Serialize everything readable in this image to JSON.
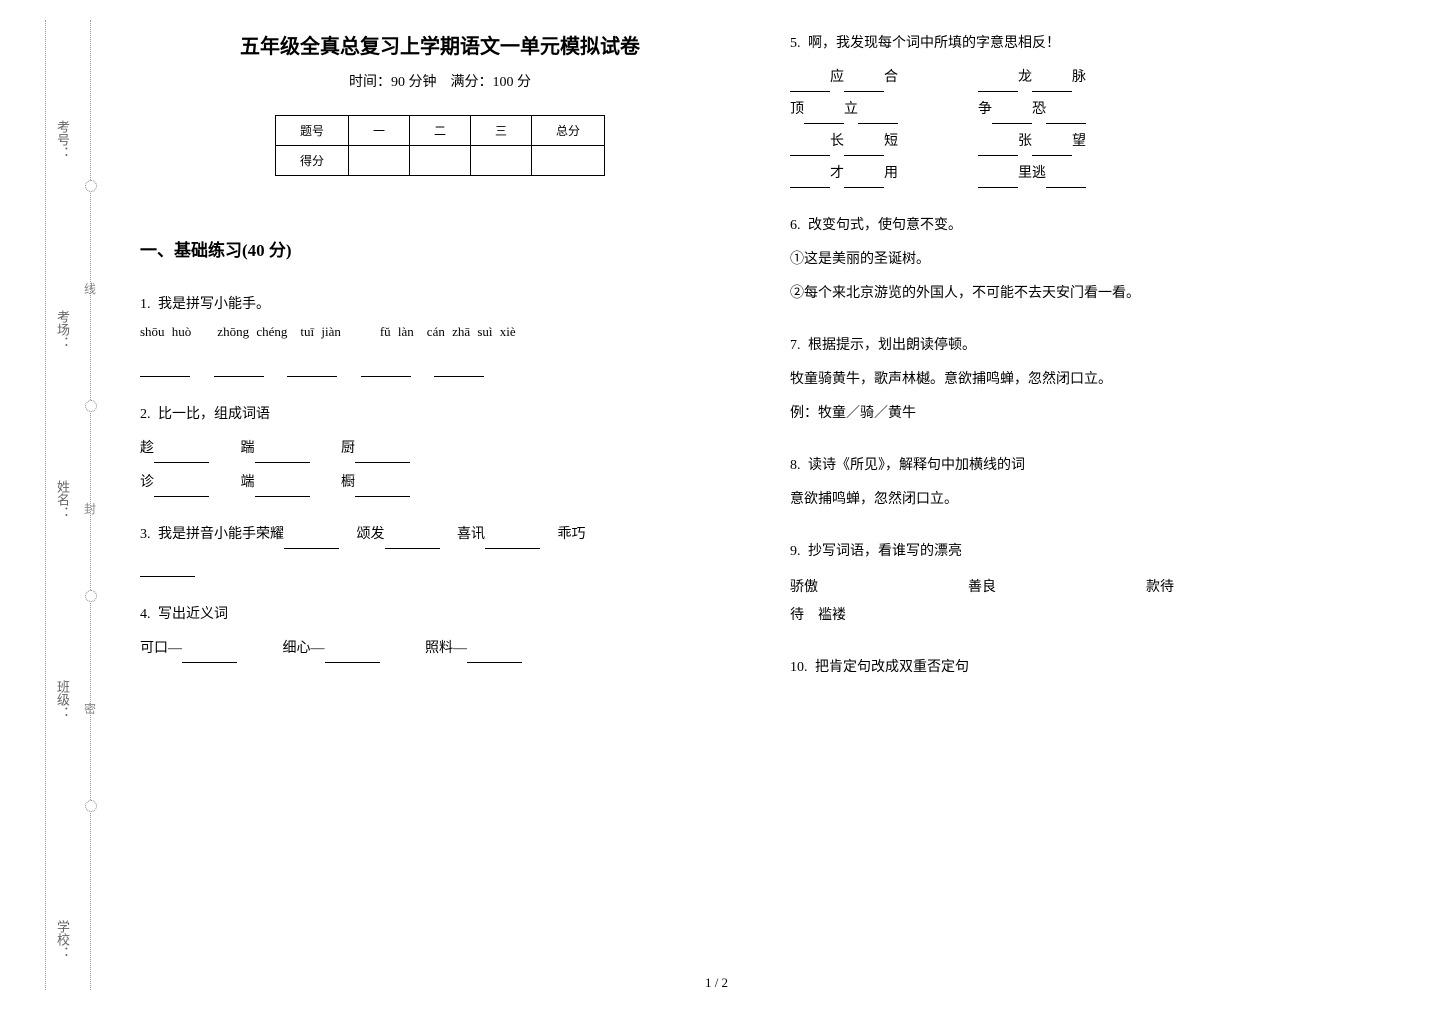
{
  "binding": {
    "labels": [
      "考号：",
      "考场：",
      "姓名：",
      "班级：",
      "学校："
    ],
    "seal_chars": [
      "线",
      "封",
      "密"
    ]
  },
  "header": {
    "title": "五年级全真总复习上学期语文一单元模拟试卷",
    "subtitle": "时间：90 分钟　满分：100 分"
  },
  "score_table": {
    "row1": [
      "题号",
      "一",
      "二",
      "三",
      "总分"
    ],
    "row2_label": "得分"
  },
  "section1": {
    "heading": "一、基础练习(40 分)"
  },
  "q1": {
    "label": "1.",
    "text": "我是拼写小能手。",
    "pinyin": "shōu huò　　zhōng chéng　tuī jiàn　　　fǔ làn　cán zhā suì xiè"
  },
  "q2": {
    "label": "2.",
    "text": "比一比，组成词语",
    "row1": [
      "趁",
      "踹",
      "厨"
    ],
    "row2": [
      "诊",
      "端",
      "橱"
    ]
  },
  "q3": {
    "label": "3.",
    "text": "我是拼音小能手荣耀",
    "items": [
      "颂发",
      "喜讯",
      "乖巧"
    ]
  },
  "q4": {
    "label": "4.",
    "text": "写出近义词",
    "items": [
      "可口—",
      "细心—",
      "照料—"
    ]
  },
  "q5": {
    "label": "5.",
    "text": "啊，我发现每个词中所填的字意思相反！",
    "left": [
      {
        "a": "应",
        "b": "合"
      },
      {
        "a": "顶",
        "b": "立"
      },
      {
        "a": "长",
        "b": "短"
      },
      {
        "a": "才",
        "b": "用"
      }
    ],
    "right": [
      {
        "a": "龙",
        "b": "脉"
      },
      {
        "a": "争",
        "b": "恐"
      },
      {
        "a": "张",
        "b": "望"
      },
      {
        "a": "里逃",
        "b": ""
      }
    ]
  },
  "q6": {
    "label": "6.",
    "text": "改变句式，使句意不变。",
    "line1": "①这是美丽的圣诞树。",
    "line2": "②每个来北京游览的外国人，不可能不去天安门看一看。"
  },
  "q7": {
    "label": "7.",
    "text": "根据提示，划出朗读停顿。",
    "content": "牧童骑黄牛，歌声林樾。意欲捕鸣蝉，忽然闭口立。",
    "example": "例：牧童／骑／黄牛"
  },
  "q8": {
    "label": "8.",
    "text": "读诗《所见》，解释句中加横线的词",
    "content": "意欲捕鸣蝉，忽然闭口立。"
  },
  "q9": {
    "label": "9.",
    "text": "抄写词语，看谁写的漂亮",
    "words": [
      "骄傲",
      "善良",
      "款待",
      "褴褛"
    ]
  },
  "q10": {
    "label": "10.",
    "text": "把肯定句改成双重否定句"
  },
  "page_num": "1 / 2"
}
